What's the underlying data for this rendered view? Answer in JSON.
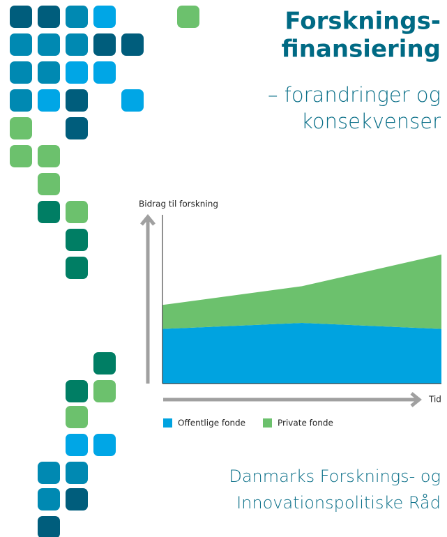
{
  "header": {
    "title_lines": [
      "Forsknings-",
      "finansiering"
    ],
    "subtitle_lines": [
      "– forandringer og",
      "konsekvenser"
    ]
  },
  "chart_data": {
    "type": "area",
    "stacked": true,
    "y_label": "Bidrag til forskning",
    "x_label": "Tid",
    "categories": [
      null,
      null,
      null
    ],
    "ylim": [
      0,
      100
    ],
    "series": [
      {
        "name": "Offentlige fonde",
        "color": "#00a3e0",
        "values": [
          32,
          35.5,
          32
        ]
      },
      {
        "name": "Private fonde",
        "color": "#6cc16d",
        "values": [
          14,
          21.5,
          43.5
        ]
      }
    ]
  },
  "footer": {
    "lines": [
      "Danmarks Forsknings- og",
      "Innovationspolitiske Råd"
    ]
  }
}
